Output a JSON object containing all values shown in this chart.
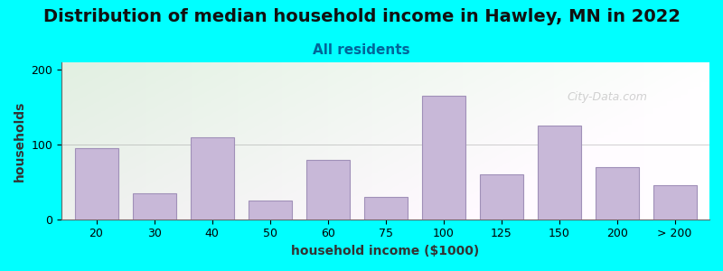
{
  "title": "Distribution of median household income in Hawley, MN in 2022",
  "subtitle": "All residents",
  "xlabel": "household income ($1000)",
  "ylabel": "households",
  "background_color": "#00FFFF",
  "bar_color": "#C8B8D8",
  "bar_edge_color": "#A090B8",
  "categories": [
    "20",
    "30",
    "40",
    "50",
    "60",
    "75",
    "100",
    "125",
    "150",
    "200",
    "> 200"
  ],
  "values": [
    95,
    35,
    110,
    25,
    80,
    30,
    165,
    60,
    125,
    70,
    45
  ],
  "ylim": [
    0,
    210
  ],
  "yticks": [
    0,
    100,
    200
  ],
  "bar_widths": [
    0.8,
    0.8,
    0.8,
    0.8,
    0.8,
    0.8,
    0.8,
    0.8,
    0.8,
    0.8,
    0.8
  ],
  "title_fontsize": 14,
  "subtitle_fontsize": 11,
  "axis_label_fontsize": 10,
  "tick_fontsize": 9,
  "watermark": "City-Data.com"
}
